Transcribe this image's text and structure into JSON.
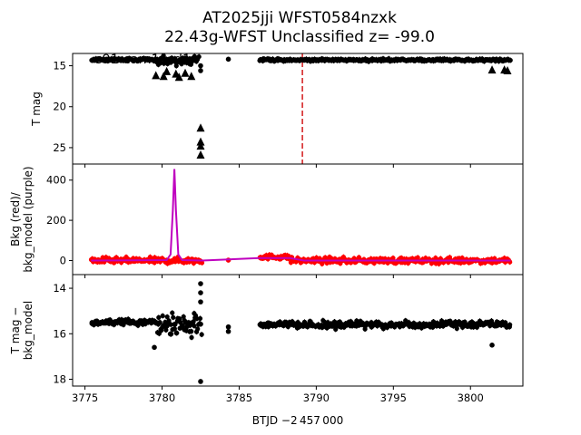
{
  "figure": {
    "title_line1": "AT2025jji  WFST0584nzxk",
    "title_line2": "22.43g-WFST Unclassified z= -99.0",
    "panel_annotation": "s91 cam1ccd1"
  },
  "colors": {
    "points": "#000000",
    "bkg": "#ff0000",
    "bkg_model": "#bf00bf",
    "event_line": "#d62728"
  },
  "chart_data": [
    {
      "type": "scatter",
      "panel": "top",
      "ylabel": "T mag",
      "ylim": [
        27,
        13.5
      ],
      "yticks": [
        15,
        20,
        25
      ],
      "xlim": [
        3774.2,
        3803.4
      ],
      "event_marker_x": 3789.1,
      "series": [
        {
          "name": "detections",
          "marker": "circle",
          "segments": [
            {
              "x_start": 3775.4,
              "x_end": 3779.6,
              "y": 14.25,
              "scatter": 0.1,
              "n": 90
            },
            {
              "x_start": 3779.6,
              "x_end": 3782.4,
              "y": 14.35,
              "scatter": 0.4,
              "n": 60
            },
            {
              "x_start": 3786.3,
              "x_end": 3802.6,
              "y": 14.3,
              "scatter": 0.1,
              "n": 320
            }
          ],
          "points": [
            {
              "x": 3782.5,
              "y": 15.0
            },
            {
              "x": 3782.5,
              "y": 15.6
            },
            {
              "x": 3784.3,
              "y": 14.2
            }
          ]
        },
        {
          "name": "upper limits",
          "marker": "triangle",
          "points": [
            {
              "x": 3779.6,
              "y": 16.2
            },
            {
              "x": 3780.1,
              "y": 16.3
            },
            {
              "x": 3780.3,
              "y": 15.7
            },
            {
              "x": 3780.9,
              "y": 16.0
            },
            {
              "x": 3781.1,
              "y": 16.4
            },
            {
              "x": 3781.5,
              "y": 15.9
            },
            {
              "x": 3781.9,
              "y": 16.3
            },
            {
              "x": 3782.5,
              "y": 22.6
            },
            {
              "x": 3782.5,
              "y": 24.3
            },
            {
              "x": 3782.5,
              "y": 24.8
            },
            {
              "x": 3782.5,
              "y": 25.9
            },
            {
              "x": 3782.5,
              "y": 27.5
            },
            {
              "x": 3801.4,
              "y": 15.5
            },
            {
              "x": 3802.2,
              "y": 15.5
            },
            {
              "x": 3802.4,
              "y": 15.6
            }
          ]
        }
      ]
    },
    {
      "type": "scatter",
      "panel": "middle",
      "ylabel_line1": "Bkg (red)/",
      "ylabel_line2": "bkg_model (purple)",
      "ylim": [
        -70,
        480
      ],
      "yticks": [
        0,
        200,
        400
      ],
      "xlim": [
        3774.2,
        3803.4
      ],
      "series": [
        {
          "name": "Bkg",
          "marker": "circle",
          "segments": [
            {
              "x_start": 3775.4,
              "x_end": 3782.6,
              "y": 0,
              "scatter": 10,
              "n": 140
            },
            {
              "x_start": 3786.3,
              "x_end": 3788.3,
              "y": 18,
              "scatter": 8,
              "n": 40
            },
            {
              "x_start": 3788.3,
              "x_end": 3802.6,
              "y": 0,
              "scatter": 10,
              "n": 260
            }
          ],
          "points": [
            {
              "x": 3784.3,
              "y": 2
            }
          ]
        },
        {
          "name": "bkg_model",
          "marker": "line",
          "x": [
            3775.4,
            3780.3,
            3780.55,
            3780.7,
            3780.8,
            3780.9,
            3781.05,
            3781.3,
            3782.6,
            3786.3,
            3788.3,
            3789.2,
            3802.6
          ],
          "y": [
            0,
            2,
            30,
            250,
            455,
            250,
            30,
            2,
            0,
            12,
            12,
            0,
            0
          ]
        }
      ]
    },
    {
      "type": "scatter",
      "panel": "bottom",
      "ylabel_line1": "T mag −",
      "ylabel_line2": "bkg_model",
      "xlabel": "BTJD −2 457 000",
      "ylim": [
        18.3,
        13.4
      ],
      "yticks": [
        14,
        16,
        18
      ],
      "xlim": [
        3774.2,
        3803.4
      ],
      "xticks": [
        3775,
        3780,
        3785,
        3790,
        3795,
        3800
      ],
      "series": [
        {
          "name": "detections",
          "marker": "circle",
          "segments": [
            {
              "x_start": 3775.4,
              "x_end": 3779.6,
              "y": 15.5,
              "scatter": 0.1,
              "n": 90
            },
            {
              "x_start": 3779.6,
              "x_end": 3782.6,
              "y": 15.6,
              "scatter": 0.35,
              "n": 70
            },
            {
              "x_start": 3786.3,
              "x_end": 3802.6,
              "y": 15.6,
              "scatter": 0.1,
              "n": 320
            }
          ],
          "points": [
            {
              "x": 3782.5,
              "y": 13.8
            },
            {
              "x": 3782.5,
              "y": 14.2
            },
            {
              "x": 3782.5,
              "y": 14.6
            },
            {
              "x": 3782.5,
              "y": 18.1
            },
            {
              "x": 3784.3,
              "y": 15.7
            },
            {
              "x": 3784.3,
              "y": 15.9
            },
            {
              "x": 3779.5,
              "y": 16.6
            },
            {
              "x": 3801.4,
              "y": 16.5
            }
          ]
        }
      ]
    }
  ]
}
